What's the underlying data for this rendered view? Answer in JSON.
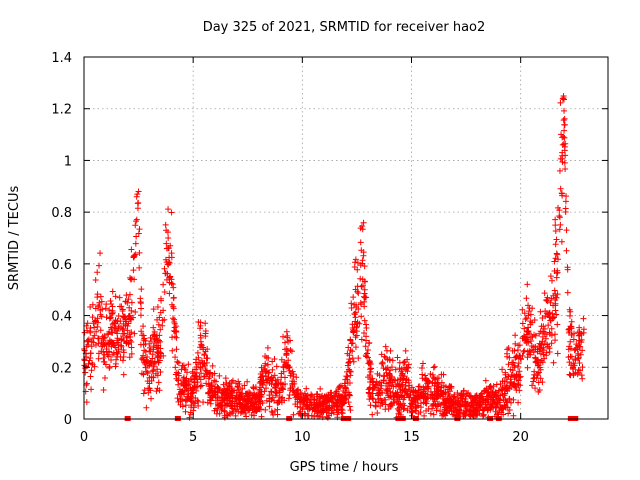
{
  "chart_data": {
    "type": "scatter",
    "title": "Day 325 of 2021, SRMTID for receiver hao2",
    "xlabel": "GPS time / hours",
    "ylabel": "SRMTID / TECUs",
    "xlim": [
      0,
      24
    ],
    "ylim": [
      0,
      1.4
    ],
    "xticks": [
      0,
      5,
      10,
      15,
      20
    ],
    "yticks": [
      0,
      0.2,
      0.4,
      0.6,
      0.8,
      1.0,
      1.2,
      1.4
    ],
    "xtick_labels": [
      "0",
      "5",
      "10",
      "15",
      "20"
    ],
    "ytick_labels": [
      "0",
      "0.2",
      "0.4",
      "0.6",
      "0.8",
      "1",
      "1.2",
      "1.4"
    ],
    "grid": true,
    "marker": "+",
    "color": "#ff0000",
    "envelope": [
      [
        0.0,
        0.18,
        0.12
      ],
      [
        0.3,
        0.28,
        0.12
      ],
      [
        0.5,
        0.34,
        0.12
      ],
      [
        0.7,
        0.45,
        0.13
      ],
      [
        0.9,
        0.3,
        0.12
      ],
      [
        1.1,
        0.28,
        0.1
      ],
      [
        1.3,
        0.34,
        0.1
      ],
      [
        1.5,
        0.3,
        0.09
      ],
      [
        1.7,
        0.32,
        0.09
      ],
      [
        1.9,
        0.36,
        0.1
      ],
      [
        2.1,
        0.38,
        0.12
      ],
      [
        2.3,
        0.55,
        0.2
      ],
      [
        2.45,
        0.9,
        0.07
      ],
      [
        2.6,
        0.38,
        0.12
      ],
      [
        2.8,
        0.22,
        0.1
      ],
      [
        3.0,
        0.18,
        0.08
      ],
      [
        3.2,
        0.3,
        0.12
      ],
      [
        3.4,
        0.28,
        0.12
      ],
      [
        3.6,
        0.38,
        0.15
      ],
      [
        3.8,
        0.68,
        0.1
      ],
      [
        4.0,
        0.55,
        0.15
      ],
      [
        4.2,
        0.26,
        0.1
      ],
      [
        4.4,
        0.15,
        0.08
      ],
      [
        4.6,
        0.12,
        0.06
      ],
      [
        4.8,
        0.1,
        0.06
      ],
      [
        5.0,
        0.1,
        0.06
      ],
      [
        5.2,
        0.18,
        0.1
      ],
      [
        5.4,
        0.3,
        0.12
      ],
      [
        5.6,
        0.2,
        0.1
      ],
      [
        5.8,
        0.12,
        0.07
      ],
      [
        6.0,
        0.1,
        0.06
      ],
      [
        6.5,
        0.08,
        0.05
      ],
      [
        7.0,
        0.08,
        0.05
      ],
      [
        7.5,
        0.07,
        0.05
      ],
      [
        8.0,
        0.07,
        0.04
      ],
      [
        8.3,
        0.15,
        0.08
      ],
      [
        8.6,
        0.14,
        0.08
      ],
      [
        9.0,
        0.1,
        0.06
      ],
      [
        9.3,
        0.28,
        0.12
      ],
      [
        9.6,
        0.1,
        0.06
      ],
      [
        10.0,
        0.05,
        0.04
      ],
      [
        10.5,
        0.05,
        0.04
      ],
      [
        11.0,
        0.05,
        0.04
      ],
      [
        11.5,
        0.06,
        0.04
      ],
      [
        11.9,
        0.07,
        0.04
      ],
      [
        12.2,
        0.2,
        0.12
      ],
      [
        12.4,
        0.4,
        0.12
      ],
      [
        12.6,
        0.45,
        0.15
      ],
      [
        12.8,
        0.6,
        0.15
      ],
      [
        13.0,
        0.2,
        0.1
      ],
      [
        13.3,
        0.1,
        0.06
      ],
      [
        13.6,
        0.12,
        0.07
      ],
      [
        13.9,
        0.18,
        0.1
      ],
      [
        14.2,
        0.1,
        0.06
      ],
      [
        14.5,
        0.12,
        0.08
      ],
      [
        14.8,
        0.15,
        0.08
      ],
      [
        15.0,
        0.06,
        0.04
      ],
      [
        15.5,
        0.1,
        0.06
      ],
      [
        16.0,
        0.12,
        0.07
      ],
      [
        16.5,
        0.08,
        0.05
      ],
      [
        17.0,
        0.05,
        0.04
      ],
      [
        17.5,
        0.05,
        0.04
      ],
      [
        18.0,
        0.05,
        0.04
      ],
      [
        18.5,
        0.08,
        0.05
      ],
      [
        19.0,
        0.06,
        0.04
      ],
      [
        19.5,
        0.15,
        0.1
      ],
      [
        20.0,
        0.2,
        0.1
      ],
      [
        20.2,
        0.35,
        0.12
      ],
      [
        20.5,
        0.3,
        0.12
      ],
      [
        20.8,
        0.2,
        0.1
      ],
      [
        21.1,
        0.35,
        0.12
      ],
      [
        21.4,
        0.4,
        0.12
      ],
      [
        21.7,
        0.55,
        0.2
      ],
      [
        21.85,
        0.95,
        0.2
      ],
      [
        22.0,
        1.15,
        0.1
      ],
      [
        22.2,
        0.3,
        0.12
      ],
      [
        22.5,
        0.22,
        0.08
      ],
      [
        22.7,
        0.28,
        0.08
      ],
      [
        22.9,
        0.3,
        0.1
      ]
    ],
    "zero_markers": [
      2.0,
      4.3,
      9.4,
      11.9,
      12.1,
      14.4,
      14.6,
      15.2,
      17.1,
      18.6,
      19.0,
      22.3,
      22.5
    ]
  }
}
